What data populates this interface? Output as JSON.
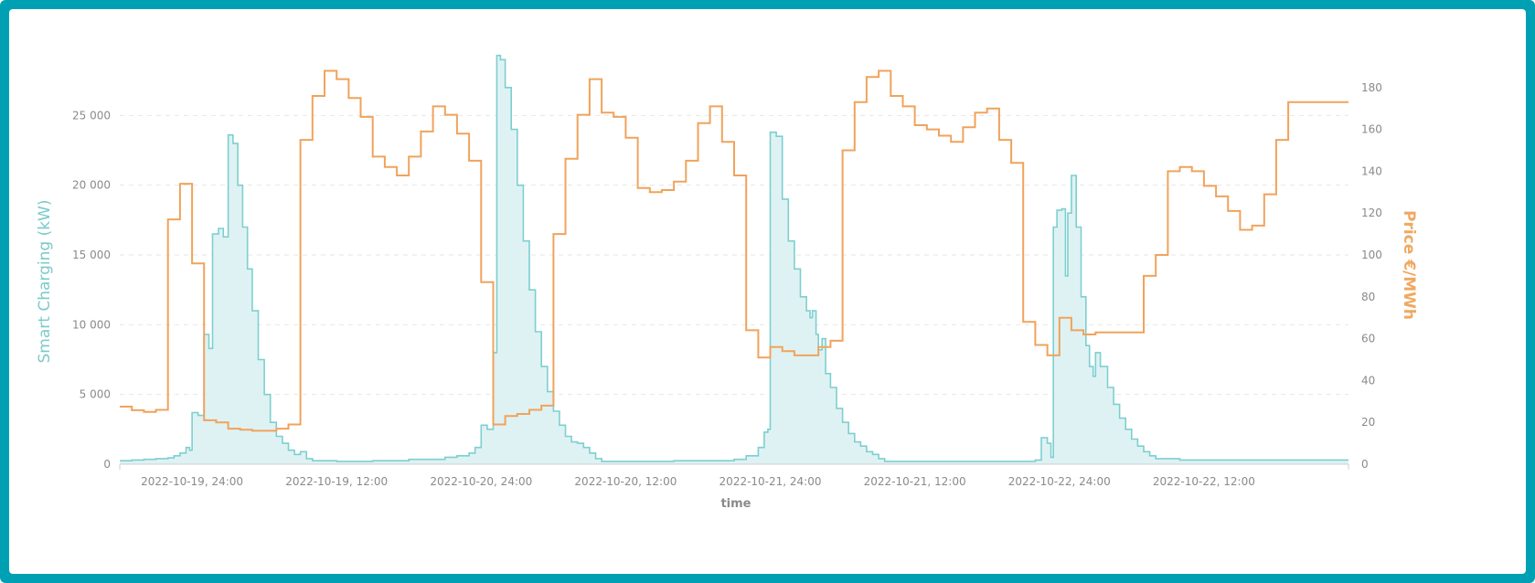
{
  "colors": {
    "frame": "#00a0b4",
    "charging": "#7dcfcf",
    "charging_fill": "#dff2f3",
    "price": "#f0a35c"
  },
  "chart_data": {
    "type": "area",
    "xlabel": "time",
    "ylabel_left": "Smart Charging (kW)",
    "ylabel_right": "Price €/MWh",
    "ylim_left": [
      0,
      30000
    ],
    "ylim_right": [
      0,
      200
    ],
    "yticks_left": [
      {
        "value": 0,
        "label": "0"
      },
      {
        "value": 5000,
        "label": "5 000"
      },
      {
        "value": 10000,
        "label": "10 000"
      },
      {
        "value": 15000,
        "label": "15 000"
      },
      {
        "value": 20000,
        "label": "20 000"
      },
      {
        "value": 25000,
        "label": "25 000"
      }
    ],
    "yticks_right": [
      {
        "value": 0,
        "label": "0"
      },
      {
        "value": 20,
        "label": "20"
      },
      {
        "value": 40,
        "label": "40"
      },
      {
        "value": 60,
        "label": "60"
      },
      {
        "value": 80,
        "label": "80"
      },
      {
        "value": 100,
        "label": "100"
      },
      {
        "value": 120,
        "label": "120"
      },
      {
        "value": 140,
        "label": "140"
      },
      {
        "value": 160,
        "label": "160"
      },
      {
        "value": 180,
        "label": "180"
      }
    ],
    "xlim_hours": [
      -6,
      96
    ],
    "xticks": [
      {
        "hour": 0,
        "label": "2022-10-19, 24:00"
      },
      {
        "hour": 12,
        "label": "2022-10-19, 12:00"
      },
      {
        "hour": 24,
        "label": "2022-10-20, 24:00"
      },
      {
        "hour": 36,
        "label": "2022-10-20, 12:00"
      },
      {
        "hour": 48,
        "label": "2022-10-21, 24:00"
      },
      {
        "hour": 60,
        "label": "2022-10-21, 12:00"
      },
      {
        "hour": 72,
        "label": "2022-10-22, 24:00"
      },
      {
        "hour": 84,
        "label": "2022-10-22, 12:00"
      }
    ],
    "grid": true,
    "grid_style": "dashed horizontal",
    "series": [
      {
        "name": "Smart Charging (kW)",
        "kind": "area-step",
        "axis": "left",
        "points": [
          [
            -6,
            250
          ],
          [
            -5,
            300
          ],
          [
            -4,
            350
          ],
          [
            -3,
            400
          ],
          [
            -2,
            450
          ],
          [
            -1.5,
            600
          ],
          [
            -1,
            800
          ],
          [
            -0.5,
            1200
          ],
          [
            -0.2,
            1000
          ],
          [
            0,
            3700
          ],
          [
            0.5,
            3500
          ],
          [
            1,
            9300
          ],
          [
            1.4,
            8300
          ],
          [
            1.7,
            16500
          ],
          [
            2.2,
            16900
          ],
          [
            2.6,
            16300
          ],
          [
            3,
            23600
          ],
          [
            3.4,
            23000
          ],
          [
            3.8,
            20000
          ],
          [
            4.2,
            17000
          ],
          [
            4.6,
            14000
          ],
          [
            5,
            11000
          ],
          [
            5.5,
            7500
          ],
          [
            6,
            5000
          ],
          [
            6.5,
            3000
          ],
          [
            7,
            2000
          ],
          [
            7.5,
            1500
          ],
          [
            8,
            1000
          ],
          [
            8.5,
            700
          ],
          [
            9,
            900
          ],
          [
            9.5,
            400
          ],
          [
            10,
            250
          ],
          [
            12,
            200
          ],
          [
            15,
            250
          ],
          [
            18,
            350
          ],
          [
            21,
            500
          ],
          [
            22,
            600
          ],
          [
            23,
            800
          ],
          [
            23.5,
            1200
          ],
          [
            24,
            2800
          ],
          [
            24.5,
            2500
          ],
          [
            25,
            8000
          ],
          [
            25.3,
            29300
          ],
          [
            25.6,
            29000
          ],
          [
            26,
            27000
          ],
          [
            26.5,
            24000
          ],
          [
            27,
            20000
          ],
          [
            27.5,
            16000
          ],
          [
            28,
            12500
          ],
          [
            28.5,
            9500
          ],
          [
            29,
            7000
          ],
          [
            29.5,
            5200
          ],
          [
            30,
            3800
          ],
          [
            30.5,
            2800
          ],
          [
            31,
            2000
          ],
          [
            31.5,
            1600
          ],
          [
            32,
            1500
          ],
          [
            32.5,
            1200
          ],
          [
            33,
            800
          ],
          [
            33.5,
            400
          ],
          [
            34,
            200
          ],
          [
            40,
            250
          ],
          [
            45,
            350
          ],
          [
            46,
            600
          ],
          [
            47,
            1200
          ],
          [
            47.5,
            2300
          ],
          [
            47.8,
            2500
          ],
          [
            48,
            23800
          ],
          [
            48.5,
            23500
          ],
          [
            49,
            19000
          ],
          [
            49.5,
            16000
          ],
          [
            50,
            14000
          ],
          [
            50.5,
            12000
          ],
          [
            51,
            11000
          ],
          [
            51.3,
            10500
          ],
          [
            51.5,
            11000
          ],
          [
            51.8,
            9300
          ],
          [
            52,
            8200
          ],
          [
            52.3,
            9000
          ],
          [
            52.6,
            6500
          ],
          [
            53,
            5500
          ],
          [
            53.5,
            4000
          ],
          [
            54,
            3000
          ],
          [
            54.5,
            2200
          ],
          [
            55,
            1600
          ],
          [
            55.5,
            1300
          ],
          [
            56,
            900
          ],
          [
            56.5,
            700
          ],
          [
            57,
            400
          ],
          [
            57.5,
            200
          ],
          [
            70,
            300
          ],
          [
            70.5,
            1900
          ],
          [
            71,
            1500
          ],
          [
            71.3,
            500
          ],
          [
            71.5,
            17000
          ],
          [
            71.8,
            18200
          ],
          [
            72.2,
            18300
          ],
          [
            72.5,
            13500
          ],
          [
            72.7,
            18000
          ],
          [
            73,
            20700
          ],
          [
            73.4,
            17000
          ],
          [
            73.8,
            12000
          ],
          [
            74.2,
            8500
          ],
          [
            74.5,
            7000
          ],
          [
            74.8,
            6300
          ],
          [
            75,
            8000
          ],
          [
            75.4,
            7000
          ],
          [
            76,
            5500
          ],
          [
            76.5,
            4300
          ],
          [
            77,
            3300
          ],
          [
            77.5,
            2500
          ],
          [
            78,
            1800
          ],
          [
            78.5,
            1300
          ],
          [
            79,
            900
          ],
          [
            79.5,
            600
          ],
          [
            80,
            400
          ],
          [
            82,
            300
          ],
          [
            96,
            300
          ]
        ]
      },
      {
        "name": "Price €/MWh",
        "kind": "step",
        "axis": "right",
        "points": [
          [
            -6,
            27.5
          ],
          [
            -5,
            25.8
          ],
          [
            -4,
            25
          ],
          [
            -3,
            26
          ],
          [
            -2,
            117
          ],
          [
            -1,
            134
          ],
          [
            0,
            96
          ],
          [
            1,
            21
          ],
          [
            2,
            20
          ],
          [
            3,
            17
          ],
          [
            4,
            16.5
          ],
          [
            5,
            16
          ],
          [
            6,
            16
          ],
          [
            7,
            17
          ],
          [
            8,
            19
          ],
          [
            9,
            155
          ],
          [
            10,
            176
          ],
          [
            11,
            188
          ],
          [
            12,
            184
          ],
          [
            13,
            175
          ],
          [
            14,
            166
          ],
          [
            15,
            147
          ],
          [
            16,
            142
          ],
          [
            17,
            138
          ],
          [
            18,
            147
          ],
          [
            19,
            159
          ],
          [
            20,
            171
          ],
          [
            21,
            167
          ],
          [
            22,
            158
          ],
          [
            23,
            145
          ],
          [
            24,
            87
          ],
          [
            25,
            19
          ],
          [
            26,
            23
          ],
          [
            27,
            24
          ],
          [
            28,
            26
          ],
          [
            29,
            28
          ],
          [
            30,
            110
          ],
          [
            31,
            146
          ],
          [
            32,
            167
          ],
          [
            33,
            184
          ],
          [
            34,
            168
          ],
          [
            35,
            166
          ],
          [
            36,
            156
          ],
          [
            37,
            132
          ],
          [
            38,
            130
          ],
          [
            39,
            131
          ],
          [
            40,
            135
          ],
          [
            41,
            145
          ],
          [
            42,
            163
          ],
          [
            43,
            171
          ],
          [
            44,
            154
          ],
          [
            45,
            138
          ],
          [
            46,
            64
          ],
          [
            47,
            51
          ],
          [
            48,
            56
          ],
          [
            49,
            54
          ],
          [
            50,
            52
          ],
          [
            51,
            52
          ],
          [
            52,
            56
          ],
          [
            53,
            59
          ],
          [
            54,
            150
          ],
          [
            55,
            173
          ],
          [
            56,
            185
          ],
          [
            57,
            188
          ],
          [
            58,
            176
          ],
          [
            59,
            171
          ],
          [
            60,
            162
          ],
          [
            61,
            160
          ],
          [
            62,
            157
          ],
          [
            63,
            154
          ],
          [
            64,
            161
          ],
          [
            65,
            168
          ],
          [
            66,
            170
          ],
          [
            67,
            155
          ],
          [
            68,
            144
          ],
          [
            69,
            68
          ],
          [
            70,
            57
          ],
          [
            71,
            52
          ],
          [
            72,
            70
          ],
          [
            73,
            64
          ],
          [
            74,
            62
          ],
          [
            75,
            63
          ],
          [
            76,
            63
          ],
          [
            77,
            63
          ],
          [
            78,
            63
          ],
          [
            79,
            90
          ],
          [
            80,
            100
          ],
          [
            81,
            140
          ],
          [
            82,
            142
          ],
          [
            83,
            140
          ],
          [
            84,
            133
          ],
          [
            85,
            128
          ],
          [
            86,
            121
          ],
          [
            87,
            112
          ],
          [
            88,
            114
          ],
          [
            89,
            129
          ],
          [
            90,
            155
          ],
          [
            91,
            173
          ],
          [
            96,
            173
          ]
        ]
      }
    ]
  }
}
